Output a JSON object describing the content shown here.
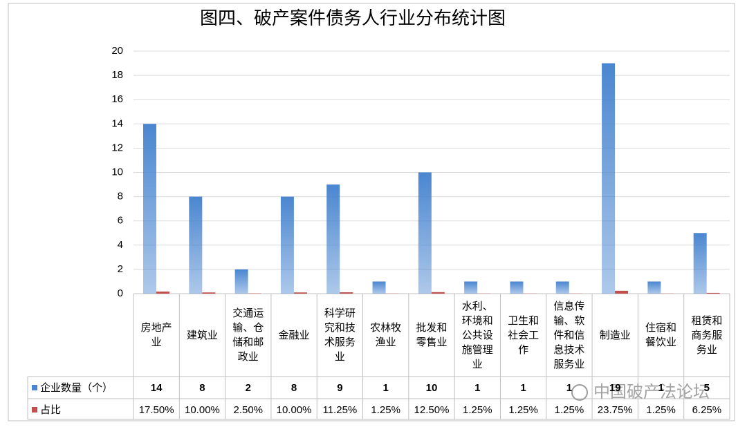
{
  "chart_data": {
    "type": "bar",
    "title": "图四、破产案件债务人行业分布统计图",
    "categories": [
      "房地产业",
      "建筑业",
      "交通运输、仓储和邮政业",
      "金融业",
      "科学研究和技术服务业",
      "农林牧渔业",
      "批发和零售业",
      "水利、环境和公共设施管理业",
      "卫生和社会工作",
      "信息传输、软件和信息技术服务业",
      "制造业",
      "住宿和餐饮业",
      "租赁和商务服务业"
    ],
    "series": [
      {
        "name": "企业数量（个）",
        "color": "#4a86d0",
        "values": [
          14,
          8,
          2,
          8,
          9,
          1,
          10,
          1,
          1,
          1,
          19,
          1,
          5
        ]
      },
      {
        "name": "占比",
        "color": "#c0504d",
        "values": [
          0.175,
          0.1,
          0.025,
          0.1,
          0.1125,
          0.0125,
          0.125,
          0.0125,
          0.0125,
          0.0125,
          0.2375,
          0.0125,
          0.0625
        ],
        "value_labels": [
          "17.50%",
          "10.00%",
          "2.50%",
          "10.00%",
          "11.25%",
          "1.25%",
          "12.50%",
          "1.25%",
          "1.25%",
          "1.25%",
          "23.75%",
          "1.25%",
          "6.25%"
        ]
      }
    ],
    "ylim": [
      0,
      20
    ],
    "yticks": [
      0,
      2,
      4,
      6,
      8,
      10,
      12,
      14,
      16,
      18,
      20
    ],
    "grid": true,
    "watermark": "中国破产法论坛"
  }
}
